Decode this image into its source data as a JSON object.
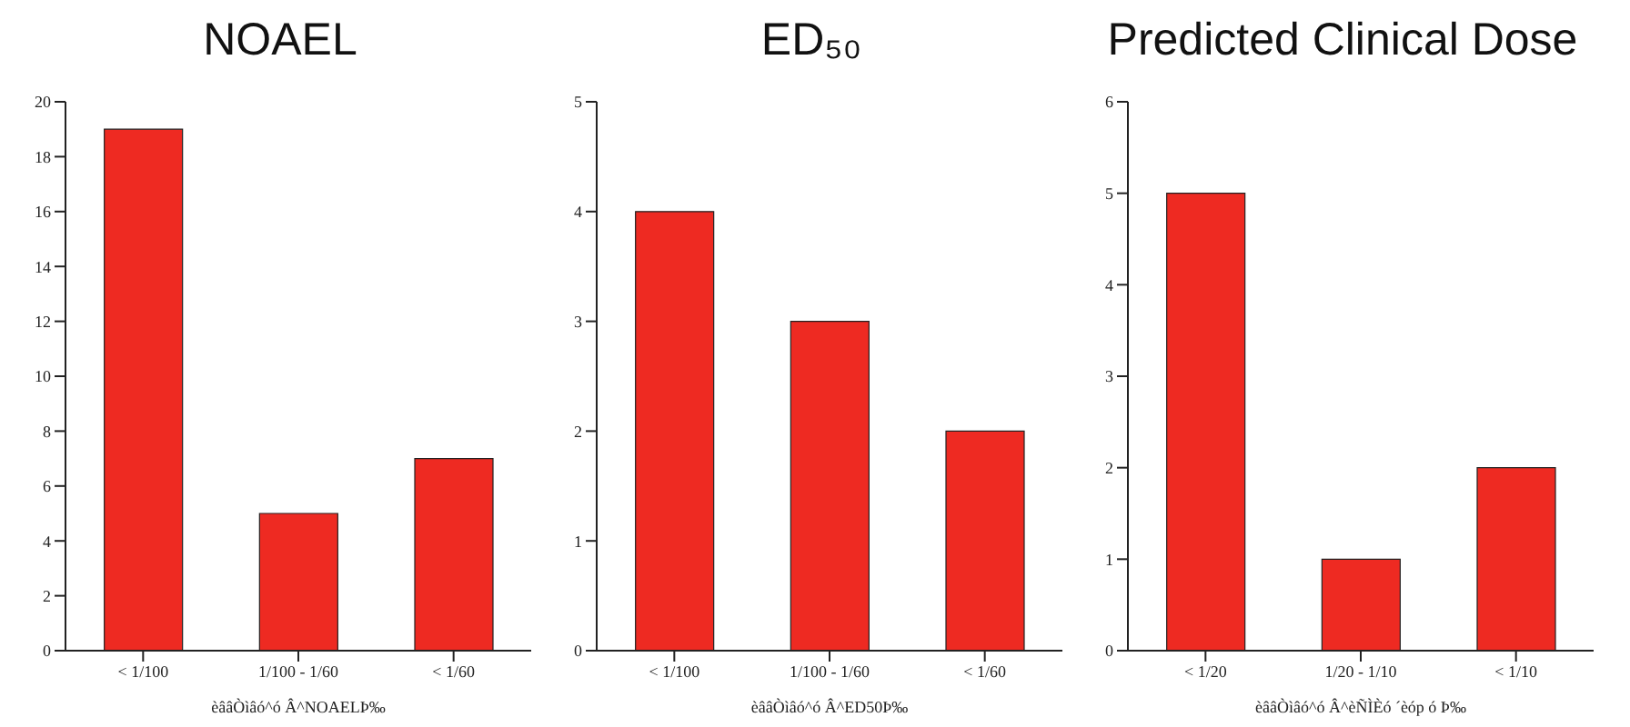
{
  "chart_data": [
    {
      "type": "bar",
      "title": "NOAEL",
      "categories": [
        "< 1/100",
        "1/100 - 1/60",
        "< 1/60"
      ],
      "values": [
        19,
        5,
        7
      ],
      "color": "#ee2a22",
      "ylim": [
        0,
        20
      ],
      "yticks": [
        0,
        2,
        4,
        6,
        8,
        10,
        12,
        14,
        16,
        18,
        20
      ],
      "xlabel": "èââÒìâó^ó Â^NOAELÞ‰",
      "grid": false,
      "legend": false
    },
    {
      "type": "bar",
      "title": "ED₅₀",
      "categories": [
        "< 1/100",
        "1/100 - 1/60",
        "< 1/60"
      ],
      "values": [
        4,
        3,
        2
      ],
      "color": "#ee2a22",
      "ylim": [
        0,
        5
      ],
      "yticks": [
        0,
        1,
        2,
        3,
        4,
        5
      ],
      "xlabel": "èââÒìâó^ó Â^ED50Þ‰",
      "grid": false,
      "legend": false
    },
    {
      "type": "bar",
      "title": "Predicted Clinical Dose",
      "categories": [
        "< 1/20",
        "1/20 - 1/10",
        "< 1/10"
      ],
      "values": [
        5,
        1,
        2
      ],
      "color": "#ee2a22",
      "ylim": [
        0,
        6
      ],
      "yticks": [
        0,
        1,
        2,
        3,
        4,
        5,
        6
      ],
      "xlabel": "èââÒìâó^ó Â^èÑÌÈó ´èóp ó Þ‰",
      "grid": false,
      "legend": false
    }
  ]
}
